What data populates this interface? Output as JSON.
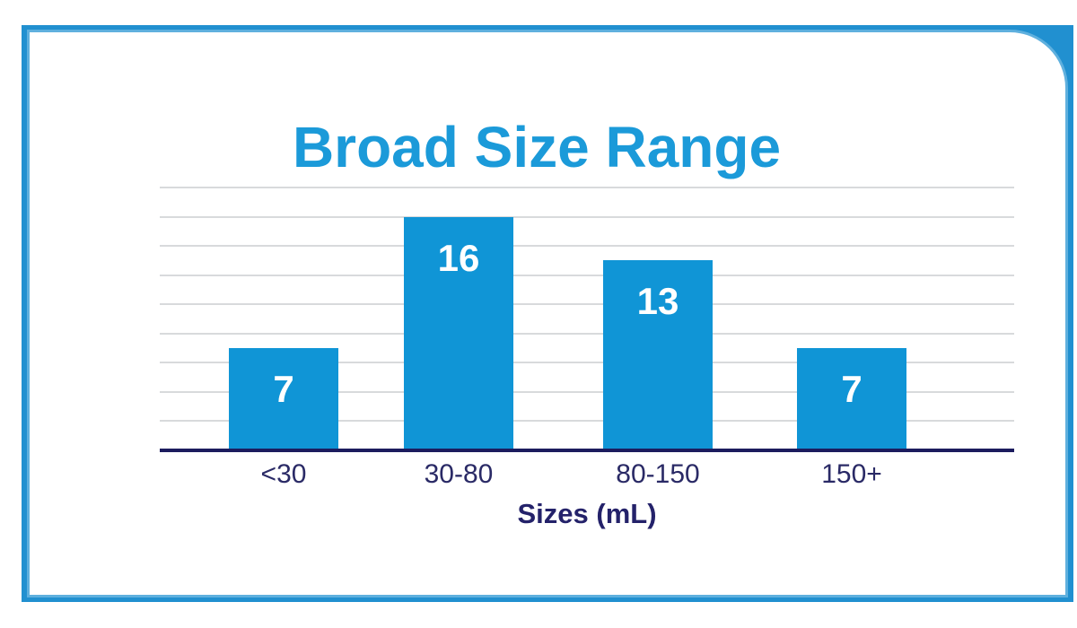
{
  "frame": {
    "color": "#2190D0",
    "inner_highlight_color": "#5FB0DE",
    "background": "#FFFFFF"
  },
  "chart_data": {
    "type": "bar",
    "title": "Broad Size Range",
    "categories": [
      "<30",
      "30-80",
      "80-150",
      "150+"
    ],
    "values": [
      7,
      16,
      13,
      7
    ],
    "value_labels": [
      "7",
      "16",
      "13",
      "7"
    ],
    "xlabel": "Sizes (mL)",
    "ylabel": "",
    "ylim": [
      0,
      18
    ],
    "grid": {
      "visible": true,
      "step": 2,
      "orientation": "horizontal"
    },
    "legend_position": "none",
    "colors": {
      "bar": "#1095D6",
      "title": "#1B9AD9",
      "axis_line": "#1C1C5E",
      "tick_label": "#2A2A66",
      "xlabel": "#24226A",
      "value_label": "#FFFFFF",
      "gridline": "#D8DADC"
    }
  }
}
